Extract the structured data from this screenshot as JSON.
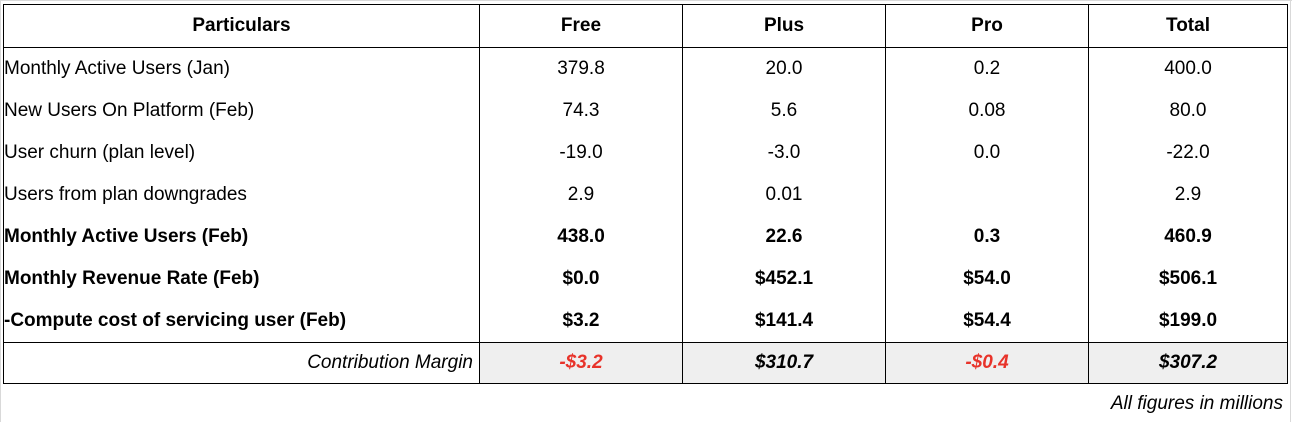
{
  "table": {
    "headers": [
      "Particulars",
      "Free",
      "Plus",
      "Pro",
      "Total"
    ],
    "rows": [
      {
        "label": "Monthly Active Users (Jan)",
        "free": "379.8",
        "plus": "20.0",
        "pro": "0.2",
        "total": "400.0",
        "bold": false
      },
      {
        "label": "New Users On Platform (Feb)",
        "free": "74.3",
        "plus": "5.6",
        "pro": "0.08",
        "total": "80.0",
        "bold": false
      },
      {
        "label": "User churn (plan level)",
        "free": "-19.0",
        "plus": "-3.0",
        "pro": "0.0",
        "total": "-22.0",
        "bold": false
      },
      {
        "label": "Users from plan downgrades",
        "free": "2.9",
        "plus": "0.01",
        "pro": "",
        "total": "2.9",
        "bold": false
      },
      {
        "label": "Monthly Active Users (Feb)",
        "free": "438.0",
        "plus": "22.6",
        "pro": "0.3",
        "total": "460.9",
        "bold": true
      },
      {
        "label": "Monthly Revenue Rate (Feb)",
        "free": "$0.0",
        "plus": "$452.1",
        "pro": "$54.0",
        "total": "$506.1",
        "bold": true
      },
      {
        "label": "-Compute cost of servicing user (Feb)",
        "free": "$3.2",
        "plus": "$141.4",
        "pro": "$54.4",
        "total": "$199.0",
        "bold": true
      }
    ],
    "margin_row": {
      "label": "Contribution Margin",
      "free": "-$3.2",
      "plus": "$310.7",
      "pro": "-$0.4",
      "total": "$307.2"
    }
  },
  "colors": {
    "negative": "#e8332a",
    "highlight_bg": "#efefef"
  },
  "footnote": "All figures in millions"
}
